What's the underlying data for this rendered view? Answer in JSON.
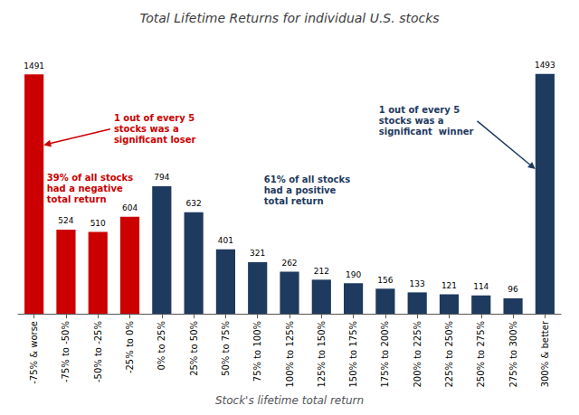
{
  "chart_data": {
    "type": "bar",
    "title": "Total Lifetime Returns for individual U.S. stocks",
    "xlabel": "Stock's lifetime total return",
    "categories": [
      "-75% & worse",
      "-75% to -50%",
      "-50% to -25%",
      "-25% to 0%",
      "0% to 25%",
      "25% to 50%",
      "50% to 75%",
      "75% to 100%",
      "100% to 125%",
      "125% to 150%",
      "150% to 175%",
      "175% to 200%",
      "200% to 225%",
      "225% to 250%",
      "250% to 275%",
      "275% to 300%",
      "300% & better"
    ],
    "values": [
      1491,
      524,
      510,
      604,
      794,
      632,
      401,
      321,
      262,
      212,
      190,
      156,
      133,
      121,
      114,
      96,
      1493
    ],
    "colors": [
      "#cc0000",
      "#cc0000",
      "#cc0000",
      "#cc0000",
      "#1e3a5f",
      "#1e3a5f",
      "#1e3a5f",
      "#1e3a5f",
      "#1e3a5f",
      "#1e3a5f",
      "#1e3a5f",
      "#1e3a5f",
      "#1e3a5f",
      "#1e3a5f",
      "#1e3a5f",
      "#1e3a5f",
      "#1e3a5f"
    ],
    "ylim": [
      0,
      1700
    ],
    "tick_labels": "x",
    "grid": false,
    "data_labels": true,
    "annotations": [
      {
        "text": "1 out of every 5\nstocks was a\nsignificant loser",
        "color": "#cc0000"
      },
      {
        "text": "39% of all stocks\nhad a negative\ntotal return",
        "color": "#cc0000"
      },
      {
        "text": "1 out of every 5\nstocks was a\nsignificant  winner",
        "color": "#1e3a5f"
      },
      {
        "text": "61% of all stocks\nhad a positive\ntotal return",
        "color": "#1e3a5f"
      }
    ]
  }
}
